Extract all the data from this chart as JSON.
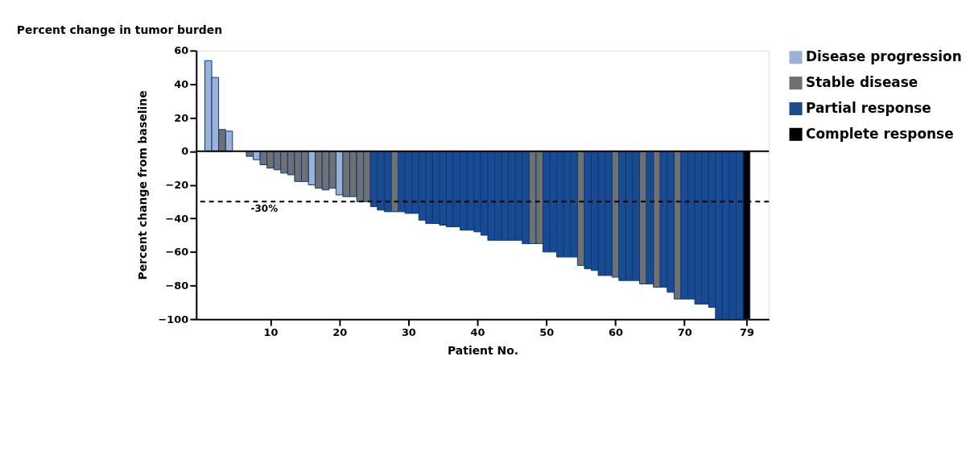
{
  "chart_data": {
    "type": "bar",
    "title": "Percent change in tumor burden",
    "xlabel": "Patient No.",
    "ylabel": "Percent change from baseline",
    "x": [
      1,
      2,
      3,
      4,
      5,
      6,
      7,
      8,
      9,
      10,
      11,
      12,
      13,
      14,
      15,
      16,
      17,
      18,
      19,
      20,
      21,
      22,
      23,
      24,
      25,
      26,
      27,
      28,
      29,
      30,
      31,
      32,
      33,
      34,
      35,
      36,
      37,
      38,
      39,
      40,
      41,
      42,
      43,
      44,
      45,
      46,
      47,
      48,
      49,
      50,
      51,
      52,
      53,
      54,
      55,
      56,
      57,
      58,
      59,
      60,
      61,
      62,
      63,
      64,
      65,
      66,
      67,
      68,
      69,
      70,
      71,
      72,
      73,
      74,
      75,
      76,
      77,
      78,
      79
    ],
    "series": [
      {
        "name": "Disease progression",
        "color": "#9db1d3",
        "values": [
          54,
          44,
          null,
          12,
          null,
          null,
          null,
          -5,
          null,
          null,
          null,
          null,
          null,
          null,
          null,
          -20,
          null,
          null,
          null,
          -26,
          null,
          null,
          null,
          null,
          null,
          null,
          null,
          null,
          null,
          null,
          null,
          null,
          null,
          null,
          null,
          null,
          null,
          null,
          null,
          null,
          null,
          null,
          null,
          null,
          null,
          null,
          null,
          null,
          null,
          null,
          null,
          null,
          null,
          null,
          null,
          null,
          null,
          null,
          null,
          null,
          null,
          null,
          null,
          null,
          null,
          null,
          null,
          null,
          null,
          null,
          null,
          null,
          null,
          null,
          null,
          null,
          null,
          null,
          null
        ]
      },
      {
        "name": "Stable disease",
        "color": "#707070",
        "values": [
          null,
          null,
          13,
          null,
          null,
          null,
          -3,
          null,
          -8,
          -10,
          -11,
          -13,
          -14,
          -18,
          -18,
          null,
          -22,
          -23,
          -22,
          null,
          -27,
          -27,
          -30,
          -30,
          null,
          null,
          null,
          -36,
          null,
          null,
          null,
          null,
          null,
          null,
          null,
          null,
          null,
          null,
          null,
          null,
          null,
          null,
          null,
          null,
          null,
          null,
          null,
          -55,
          -55,
          null,
          null,
          null,
          null,
          null,
          -68,
          null,
          null,
          null,
          null,
          -75,
          null,
          null,
          null,
          -79,
          null,
          -81,
          null,
          null,
          -88,
          null,
          null,
          null,
          null,
          null,
          null,
          null,
          null,
          null,
          null
        ]
      },
      {
        "name": "Partial response",
        "color": "#1c4a8f",
        "values": [
          null,
          null,
          null,
          null,
          null,
          null,
          null,
          null,
          null,
          null,
          null,
          null,
          null,
          null,
          null,
          null,
          null,
          null,
          null,
          null,
          null,
          null,
          null,
          null,
          -33,
          -35,
          -36,
          null,
          -36,
          -37,
          -37,
          -41,
          -43,
          -43,
          -44,
          -45,
          -45,
          -47,
          -47,
          -48,
          -50,
          -53,
          -53,
          -53,
          -53,
          -53,
          -55,
          null,
          null,
          -60,
          -60,
          -63,
          -63,
          -63,
          null,
          -70,
          -71,
          -74,
          -74,
          null,
          -77,
          -77,
          -77,
          null,
          -79,
          null,
          -81,
          -84,
          null,
          -88,
          -88,
          -91,
          -91,
          -93,
          -100,
          -100,
          -100,
          -100,
          null
        ]
      },
      {
        "name": "Complete response",
        "color": "#000000",
        "values": [
          null,
          null,
          null,
          null,
          null,
          null,
          null,
          null,
          null,
          null,
          null,
          null,
          null,
          null,
          null,
          null,
          null,
          null,
          null,
          null,
          null,
          null,
          null,
          null,
          null,
          null,
          null,
          null,
          null,
          null,
          null,
          null,
          null,
          null,
          null,
          null,
          null,
          null,
          null,
          null,
          null,
          null,
          null,
          null,
          null,
          null,
          null,
          null,
          null,
          null,
          null,
          null,
          null,
          null,
          null,
          null,
          null,
          null,
          null,
          null,
          null,
          null,
          null,
          null,
          null,
          null,
          null,
          null,
          null,
          null,
          null,
          null,
          null,
          null,
          null,
          null,
          null,
          null,
          -100
        ]
      }
    ],
    "xlim": [
      -0.75,
      82.25
    ],
    "xticks": [
      10,
      20,
      30,
      40,
      50,
      60,
      70,
      79
    ],
    "ylim": [
      -100,
      60
    ],
    "yticks": [
      -100,
      -80,
      -60,
      -40,
      -20,
      0,
      20,
      40,
      60
    ],
    "ref_lines": [
      {
        "axis": "y",
        "value": 0,
        "color": "#000000",
        "line_style": "solid"
      },
      {
        "axis": "y",
        "value": -30,
        "label": "-30%",
        "color": "#000000",
        "line_style": "dashed"
      }
    ],
    "grid": false,
    "legend": "right"
  }
}
